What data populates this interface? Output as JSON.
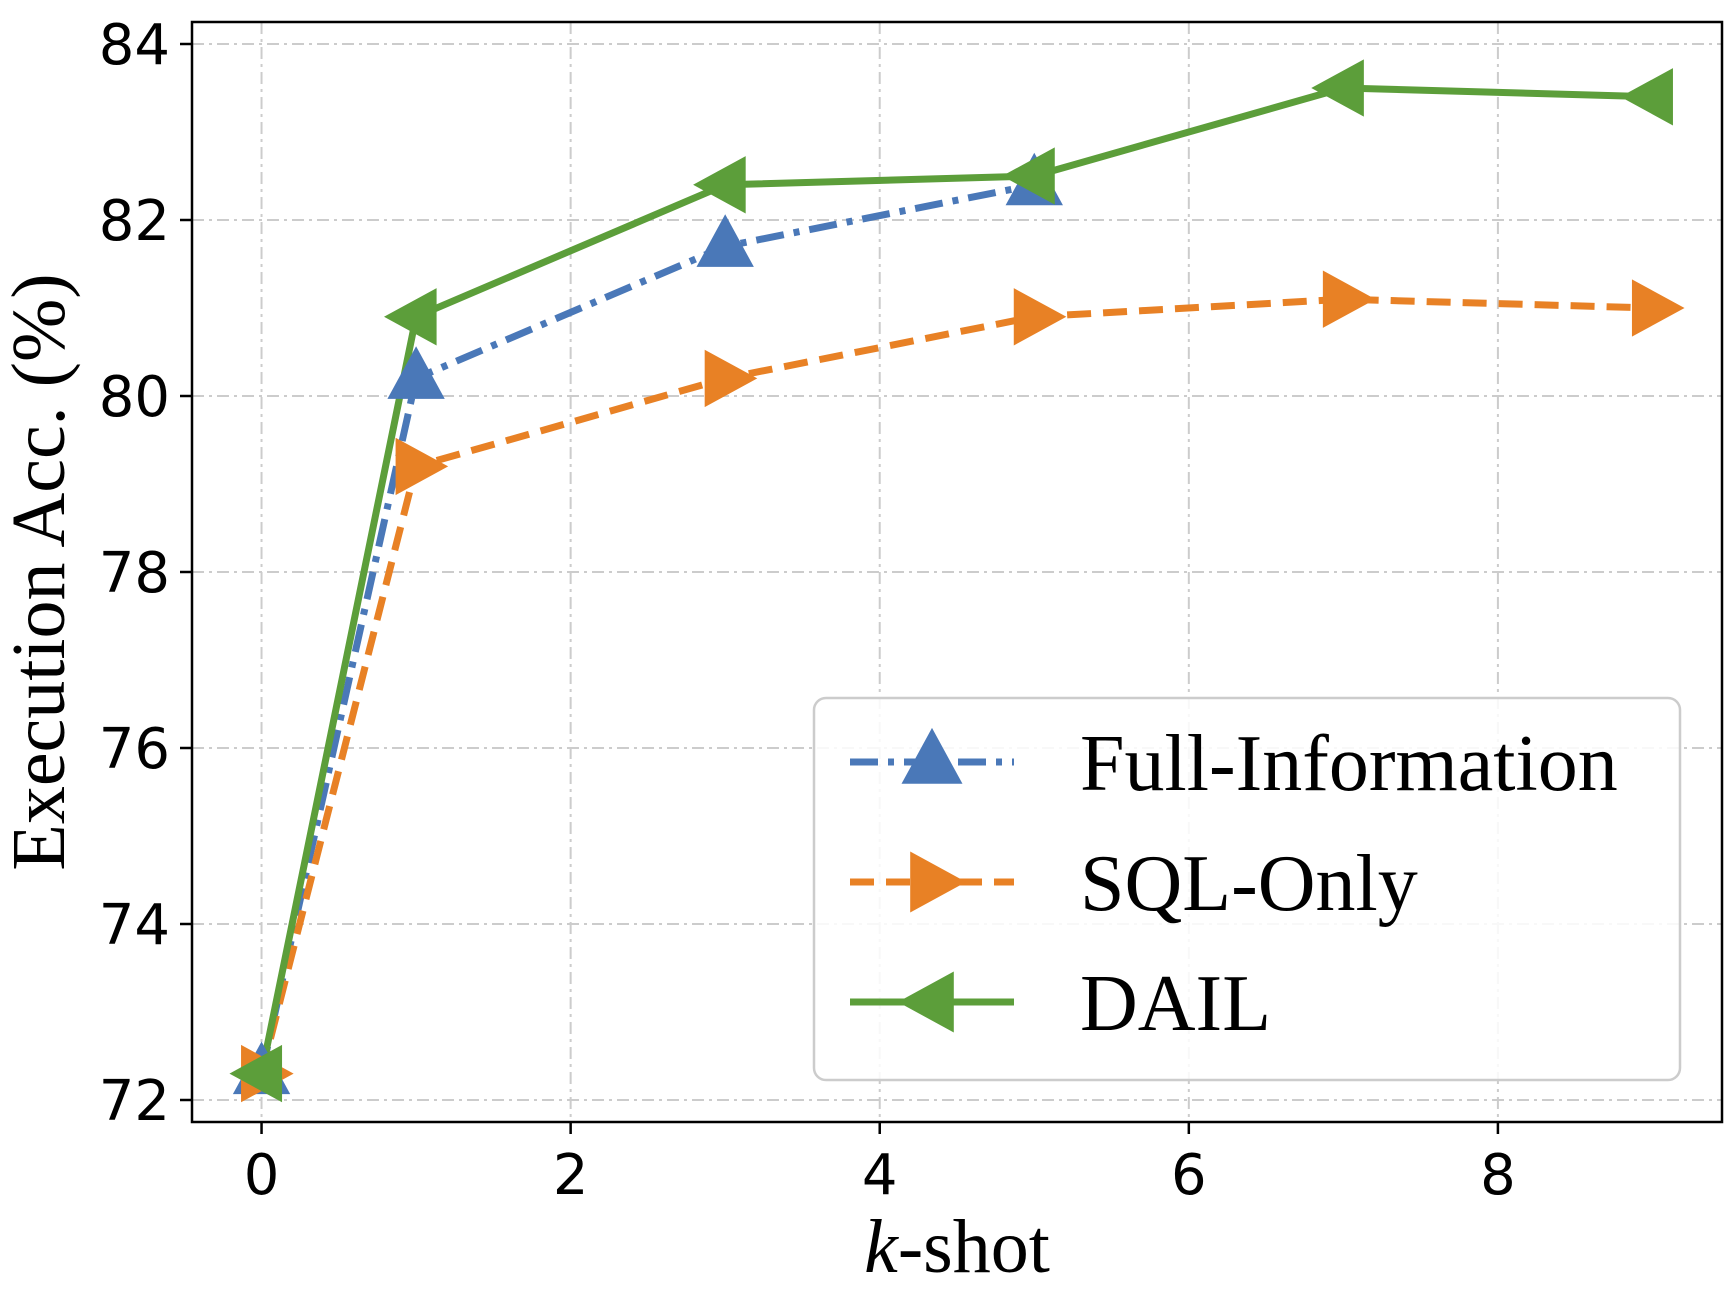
{
  "chart_data": {
    "type": "line",
    "xlabel_italic": "k",
    "xlabel_rest": "-shot",
    "ylabel": "Execution Acc. (%)",
    "xlim": [
      -0.45,
      9.45
    ],
    "ylim": [
      71.75,
      84.25
    ],
    "xticks": [
      0,
      2,
      4,
      6,
      8
    ],
    "yticks": [
      72,
      74,
      76,
      78,
      80,
      82,
      84
    ],
    "grid": true,
    "legend_position": "lower-right",
    "series": [
      {
        "name": "Full-Information",
        "color": "#4a78b8",
        "dash": "dash-dot",
        "marker": "triangle-up",
        "x": [
          0,
          1,
          3,
          5
        ],
        "y": [
          72.3,
          80.2,
          81.7,
          82.4
        ]
      },
      {
        "name": "SQL-Only",
        "color": "#e88125",
        "dash": "dashed",
        "marker": "triangle-right",
        "x": [
          0,
          1,
          3,
          5,
          7,
          9
        ],
        "y": [
          72.3,
          79.2,
          80.2,
          80.9,
          81.1,
          81.0
        ]
      },
      {
        "name": "DAIL",
        "color": "#5c9e3a",
        "dash": "solid",
        "marker": "triangle-left",
        "x": [
          0,
          1,
          3,
          5,
          7,
          9
        ],
        "y": [
          72.3,
          80.9,
          82.4,
          82.5,
          83.5,
          83.4
        ]
      }
    ]
  }
}
